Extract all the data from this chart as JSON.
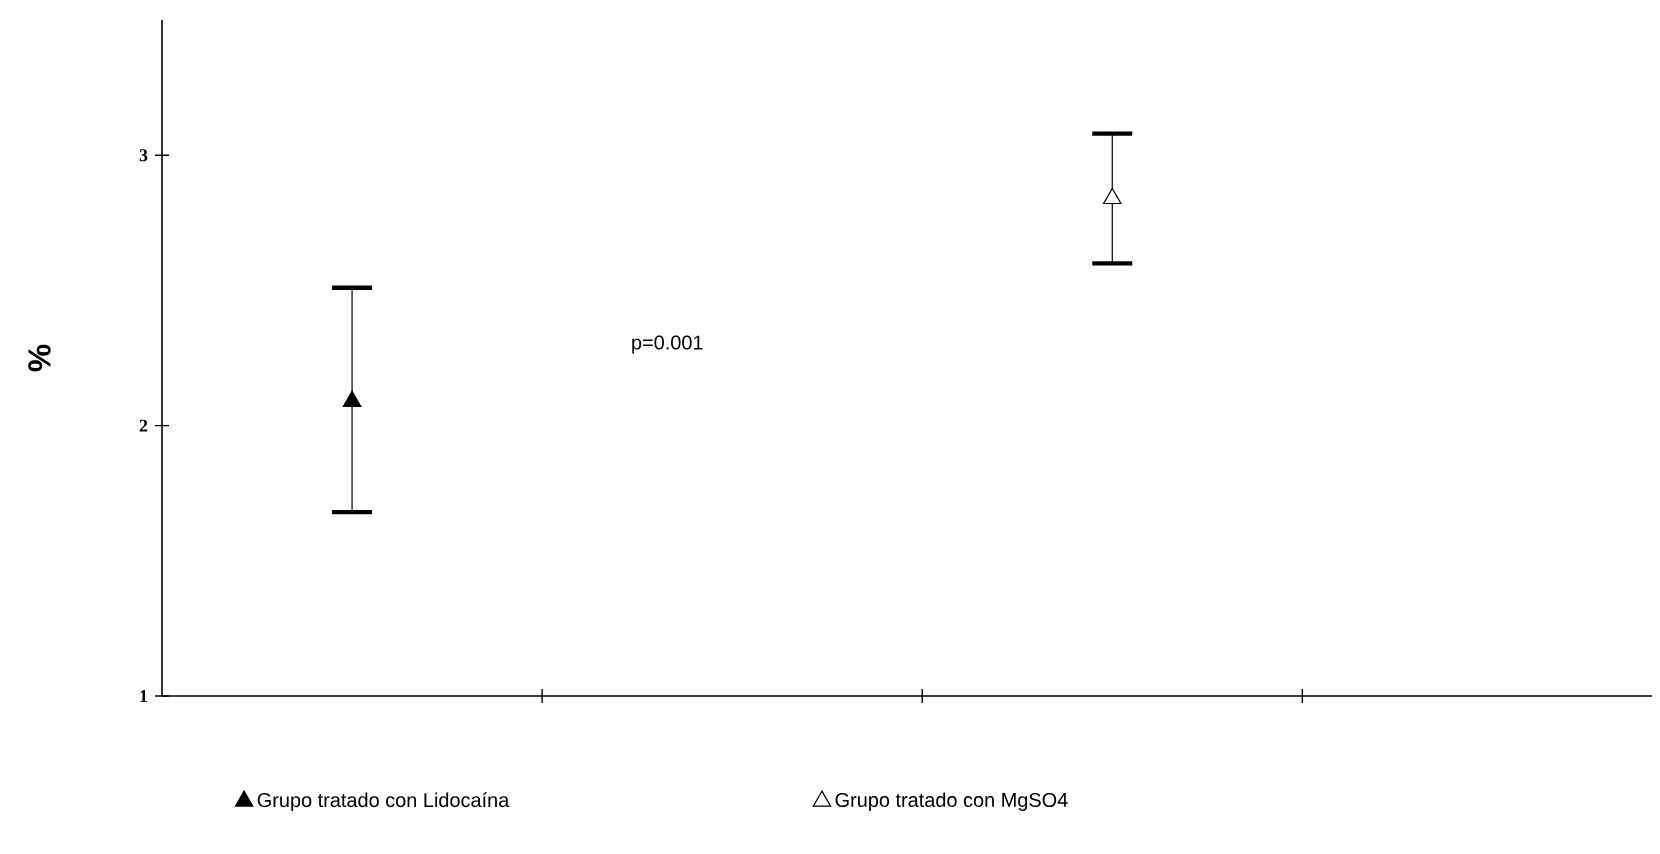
{
  "chart_data": {
    "type": "scatter",
    "ylabel": "%",
    "categories": [
      null,
      null,
      null,
      null
    ],
    "ylim": [
      1,
      3.5
    ],
    "yticks": [
      1,
      2,
      3
    ],
    "tick_labels": "y",
    "series": [
      {
        "name": "Grupo tratado con Lidocaína",
        "color": "#000000",
        "values": [
          2.09,
          null,
          null,
          null
        ],
        "errors": [
          [
            1.68,
            2.51
          ],
          null,
          null,
          null
        ]
      },
      {
        "name": "Grupo tratado con MgSO4",
        "color": "#000000",
        "values": [
          null,
          null,
          2.84,
          null
        ],
        "errors": [
          null,
          null,
          [
            2.6,
            3.08
          ],
          null
        ]
      }
    ],
    "marker": "triangle",
    "legend": "bottom",
    "grid": false,
    "annotations": [
      "p=0.001"
    ]
  }
}
